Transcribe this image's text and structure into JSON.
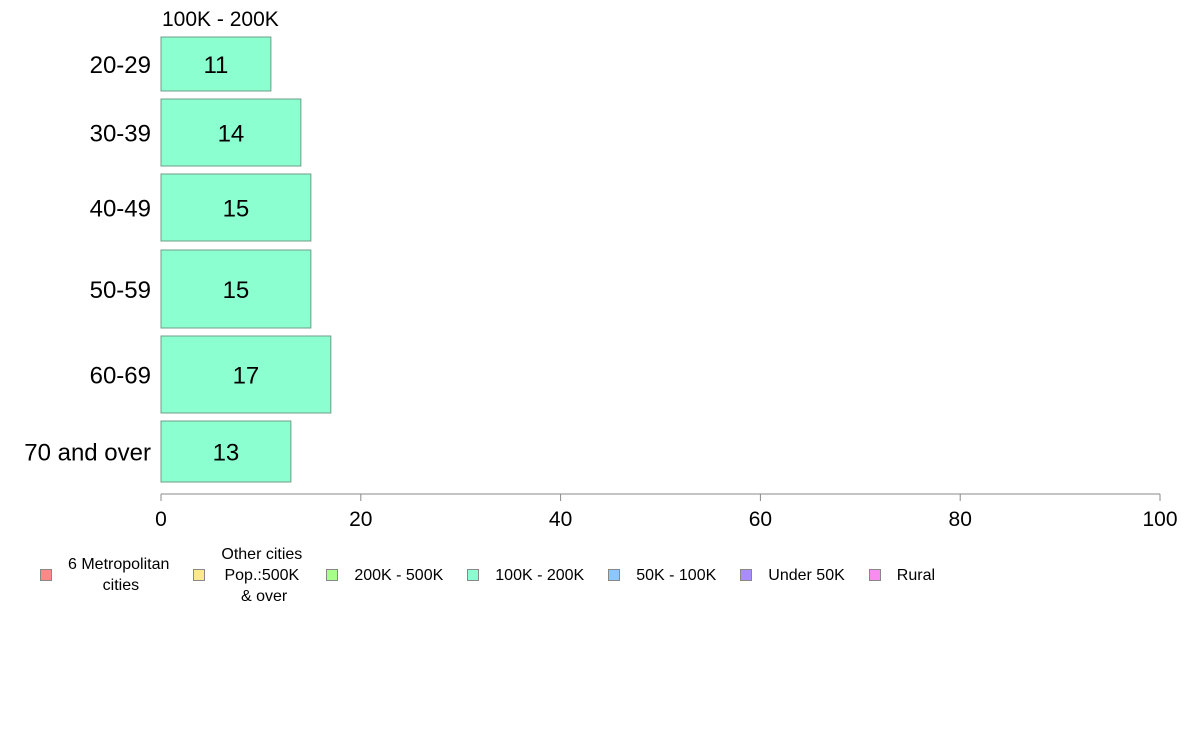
{
  "chart_data": {
    "type": "bar",
    "orientation": "horizontal",
    "panel_title": "100K - 200K",
    "categories": [
      "20-29",
      "30-39",
      "40-49",
      "50-59",
      "60-69",
      "70 and over"
    ],
    "series": [
      {
        "name": "100K - 200K",
        "values": [
          11,
          14,
          15,
          15,
          17,
          13
        ],
        "color": "#8cffd0"
      }
    ],
    "data_labels": [
      "11",
      "14",
      "15",
      "15",
      "17",
      "13"
    ],
    "xlim": [
      0,
      100
    ],
    "xticks": [
      0,
      20,
      40,
      60,
      80,
      100
    ],
    "grid": false,
    "legend": {
      "position": "bottom",
      "items": [
        {
          "label": "6 Metropolitan\n cities",
          "color": "#f98a87"
        },
        {
          "label": "Other cities\nPop.:500K\n & over",
          "color": "#fde88b"
        },
        {
          "label": "200K - 500K",
          "color": "#a6ff88"
        },
        {
          "label": "100K - 200K",
          "color": "#8cffd0"
        },
        {
          "label": "50K - 100K",
          "color": "#8cc8ff"
        },
        {
          "label": "Under 50K",
          "color": "#a98cff"
        },
        {
          "label": "Rural",
          "color": "#f98cf0"
        }
      ]
    }
  }
}
